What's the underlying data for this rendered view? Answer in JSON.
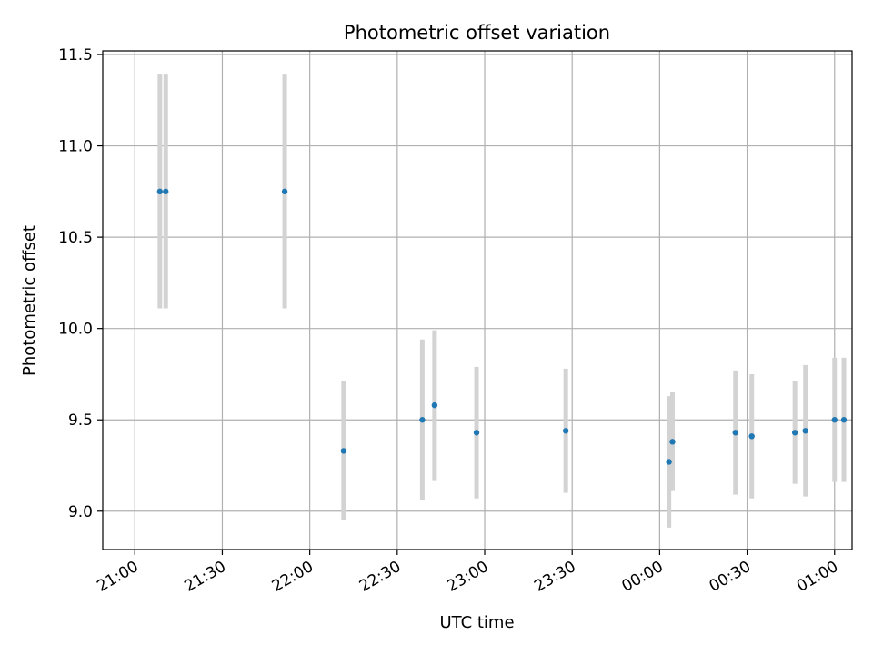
{
  "chart_data": {
    "type": "scatter",
    "title": "Photometric offset variation",
    "xlabel": "UTC time",
    "ylabel": "Photometric offset",
    "grid": true,
    "ylim": [
      8.79,
      11.52
    ],
    "xlim_minutes": [
      -5.5,
      123
    ],
    "x_ticks": [
      {
        "minutes": 0,
        "label": "21:00"
      },
      {
        "minutes": 15,
        "label": "21:30"
      },
      {
        "minutes": 30,
        "label": "22:00"
      },
      {
        "minutes": 45,
        "label": "22:30"
      },
      {
        "minutes": 60,
        "label": "23:00"
      },
      {
        "minutes": 75,
        "label": "23:30"
      },
      {
        "minutes": 90,
        "label": "00:00"
      },
      {
        "minutes": 105,
        "label": "00:30"
      },
      {
        "minutes": 120,
        "label": "01:00"
      }
    ],
    "y_ticks": [
      {
        "value": 9.0,
        "label": "9.0"
      },
      {
        "value": 9.5,
        "label": "9.5"
      },
      {
        "value": 10.0,
        "label": "10.0"
      },
      {
        "value": 10.5,
        "label": "10.5"
      },
      {
        "value": 11.0,
        "label": "11.0"
      },
      {
        "value": 11.5,
        "label": "11.5"
      }
    ],
    "marker_color": "#1f77b4",
    "errorbar_color": "#d3d3d3",
    "points": [
      {
        "minutes": 4.3,
        "y": 10.75,
        "err": 0.64
      },
      {
        "minutes": 5.3,
        "y": 10.75,
        "err": 0.64
      },
      {
        "minutes": 25.7,
        "y": 10.75,
        "err": 0.64
      },
      {
        "minutes": 35.8,
        "y": 9.33,
        "err": 0.38
      },
      {
        "minutes": 49.3,
        "y": 9.5,
        "err": 0.44
      },
      {
        "minutes": 51.4,
        "y": 9.58,
        "err": 0.41
      },
      {
        "minutes": 58.6,
        "y": 9.43,
        "err": 0.36
      },
      {
        "minutes": 73.9,
        "y": 9.44,
        "err": 0.34
      },
      {
        "minutes": 91.6,
        "y": 9.27,
        "err": 0.36
      },
      {
        "minutes": 92.2,
        "y": 9.38,
        "err": 0.27
      },
      {
        "minutes": 103.0,
        "y": 9.43,
        "err": 0.34
      },
      {
        "minutes": 105.8,
        "y": 9.41,
        "err": 0.34
      },
      {
        "minutes": 113.2,
        "y": 9.43,
        "err": 0.28
      },
      {
        "minutes": 115.0,
        "y": 9.44,
        "err": 0.36
      },
      {
        "minutes": 120.0,
        "y": 9.5,
        "err": 0.34
      },
      {
        "minutes": 121.6,
        "y": 9.5,
        "err": 0.34
      }
    ]
  }
}
